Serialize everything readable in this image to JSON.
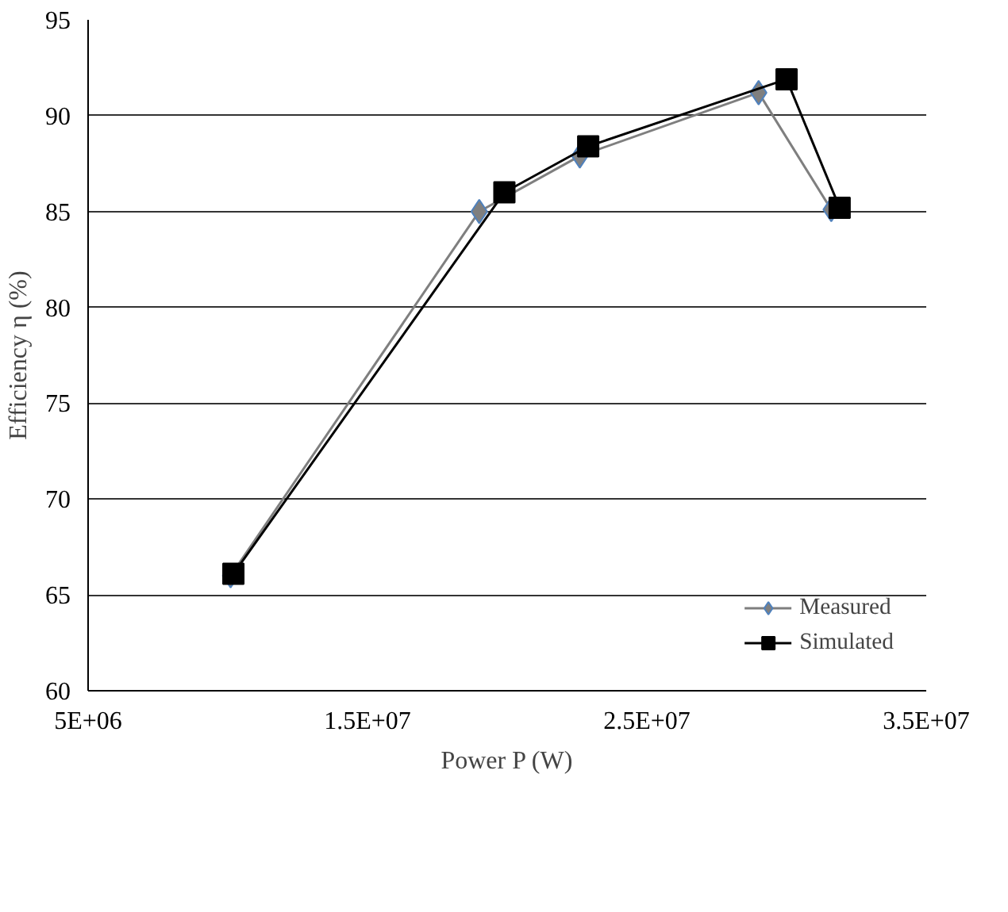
{
  "chart_data": {
    "type": "line",
    "xlabel": "Power P (W)",
    "ylabel": "Efficiency η (%)",
    "xlim": [
      5000000,
      35000000
    ],
    "xticks": [
      {
        "value": 5000000,
        "label": "5E+06"
      },
      {
        "value": 15000000,
        "label": "1.5E+07"
      },
      {
        "value": 25000000,
        "label": "2.5E+07"
      },
      {
        "value": 35000000,
        "label": "3.5E+07"
      }
    ],
    "ylim": [
      60,
      95
    ],
    "yticks": [
      60,
      65,
      70,
      75,
      80,
      85,
      90,
      95
    ],
    "grid": "y",
    "legend": "bottom right",
    "series": [
      {
        "name": "Measured",
        "color": "#7f7f7f",
        "marker": "diamond",
        "x": [
          10100000,
          19000000,
          22600000,
          29000000,
          31600000
        ],
        "values": [
          66.0,
          85.0,
          87.9,
          91.2,
          85.1
        ]
      },
      {
        "name": "Simulated",
        "color": "#000000",
        "marker": "square",
        "x": [
          10200000,
          19900000,
          22900000,
          30000000,
          31900000
        ],
        "values": [
          66.1,
          86.0,
          88.4,
          91.9,
          85.2
        ]
      }
    ]
  }
}
